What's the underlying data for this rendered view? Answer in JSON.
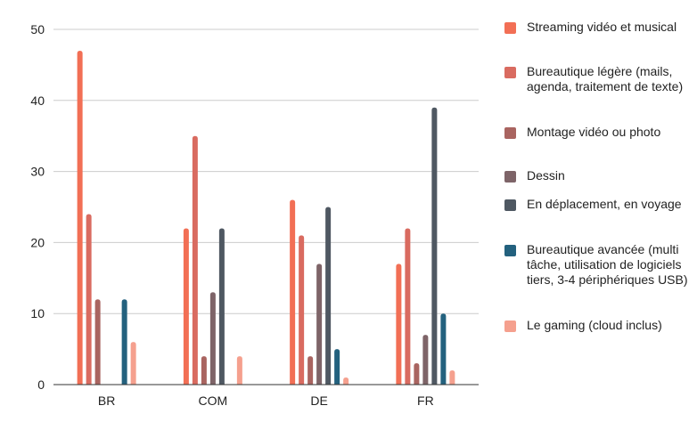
{
  "chart_data": {
    "type": "bar",
    "categories": [
      "BR",
      "COM",
      "DE",
      "FR"
    ],
    "ylim": [
      0,
      50
    ],
    "yticks": [
      0,
      10,
      20,
      30,
      40,
      50
    ],
    "grid": true,
    "legend_position": "right",
    "series": [
      {
        "name": "Streaming vidéo et musical",
        "color": "#f26f55",
        "values": [
          47,
          22,
          26,
          17
        ]
      },
      {
        "name": "Bureautique légère (mails, agenda, traitement de texte)",
        "color": "#d96b60",
        "values": [
          24,
          35,
          21,
          22
        ]
      },
      {
        "name": "Montage vidéo ou photo",
        "color": "#a96460",
        "values": [
          12,
          4,
          4,
          3
        ]
      },
      {
        "name": "Dessin",
        "color": "#7e6468",
        "values": [
          0,
          13,
          17,
          7
        ]
      },
      {
        "name": "En déplacement, en voyage",
        "color": "#4f5862",
        "values": [
          0,
          22,
          25,
          39
        ]
      },
      {
        "name": "Bureautique avancée (multi tâche, utilisation de logiciels tiers, 3-4 périphériques USB)",
        "color": "#23617e",
        "values": [
          12,
          0,
          5,
          10
        ]
      },
      {
        "name": "Le gaming (cloud inclus)",
        "color": "#f5a08e",
        "values": [
          6,
          4,
          1,
          2
        ]
      }
    ]
  }
}
